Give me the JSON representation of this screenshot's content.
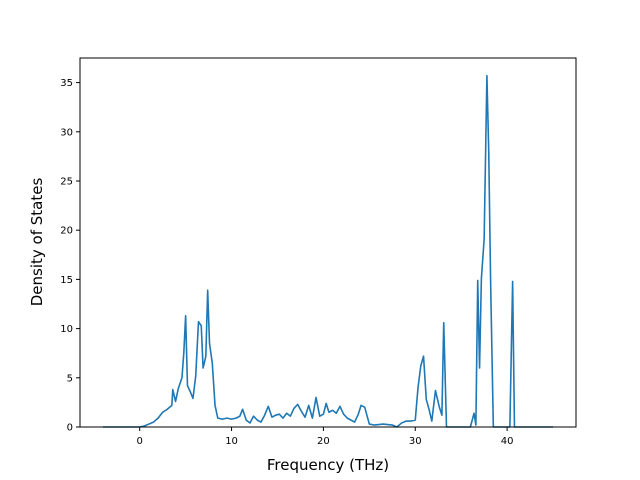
{
  "chart_data": {
    "type": "line",
    "title": "",
    "xlabel": "Frequency (THz)",
    "ylabel": "Density of States",
    "xlim": [
      -6.5,
      47.5
    ],
    "ylim": [
      0,
      37.5
    ],
    "xticks": [
      0,
      10,
      20,
      30,
      40
    ],
    "yticks": [
      0,
      5,
      10,
      15,
      20,
      25,
      30,
      35
    ],
    "grid": false,
    "legend": "none",
    "line_color": "#1f77b4",
    "series": [
      {
        "x": [
          -4.0,
          0.0,
          0.5,
          1.0,
          1.5,
          2.0,
          2.5,
          3.0,
          3.5,
          3.6,
          3.9,
          4.2,
          4.6,
          4.8,
          5.0,
          5.2,
          5.5,
          5.8,
          6.1,
          6.4,
          6.7,
          6.9,
          7.2,
          7.4,
          7.6,
          7.9,
          8.2,
          8.5,
          9.0,
          9.5,
          10.0,
          10.5,
          10.9,
          11.2,
          11.6,
          12.0,
          12.4,
          12.8,
          13.2,
          13.6,
          14.0,
          14.4,
          14.8,
          15.2,
          15.6,
          16.0,
          16.4,
          16.8,
          17.2,
          17.6,
          18.0,
          18.4,
          18.8,
          19.2,
          19.6,
          20.0,
          20.3,
          20.6,
          21.0,
          21.4,
          21.8,
          22.2,
          22.6,
          23.0,
          23.4,
          23.8,
          24.1,
          24.5,
          25.0,
          25.5,
          26.5,
          27.5,
          28.0,
          28.5,
          29.0,
          29.5,
          30.0,
          30.3,
          30.6,
          30.9,
          31.2,
          31.5,
          31.8,
          32.2,
          32.6,
          32.9,
          33.1,
          33.4,
          34.0,
          35.0,
          36.0,
          36.4,
          36.6,
          36.8,
          37.0,
          37.2,
          37.5,
          37.8,
          38.0,
          38.2,
          38.5,
          38.8,
          39.5,
          40.3,
          40.6,
          40.8,
          41.0,
          42.0,
          45.0
        ],
        "values": [
          0.0,
          0.0,
          0.1,
          0.3,
          0.5,
          0.9,
          1.5,
          1.8,
          2.2,
          3.8,
          2.6,
          3.9,
          5.0,
          7.5,
          11.3,
          4.2,
          3.6,
          2.9,
          5.2,
          10.7,
          10.3,
          6.0,
          7.2,
          13.9,
          8.5,
          6.5,
          2.2,
          0.9,
          0.8,
          0.9,
          0.8,
          0.9,
          1.1,
          1.8,
          0.7,
          0.4,
          1.1,
          0.7,
          0.5,
          1.2,
          2.1,
          1.0,
          1.2,
          1.3,
          0.9,
          1.4,
          1.1,
          1.9,
          2.3,
          1.6,
          1.0,
          2.2,
          0.9,
          3.0,
          1.1,
          1.3,
          2.4,
          1.5,
          1.7,
          1.4,
          2.1,
          1.3,
          0.9,
          0.7,
          0.5,
          1.3,
          2.2,
          2.0,
          0.3,
          0.2,
          0.3,
          0.2,
          0.0,
          0.4,
          0.6,
          0.6,
          0.7,
          4.0,
          6.2,
          7.2,
          2.8,
          1.8,
          0.6,
          3.7,
          2.1,
          1.2,
          10.6,
          0.0,
          0.0,
          0.0,
          0.0,
          1.4,
          0.2,
          14.9,
          6.0,
          15.1,
          19.1,
          35.7,
          28.0,
          15.0,
          0.0,
          0.0,
          0.0,
          0.0,
          14.8,
          0.0,
          0.0,
          0.0,
          0.0
        ]
      }
    ]
  }
}
